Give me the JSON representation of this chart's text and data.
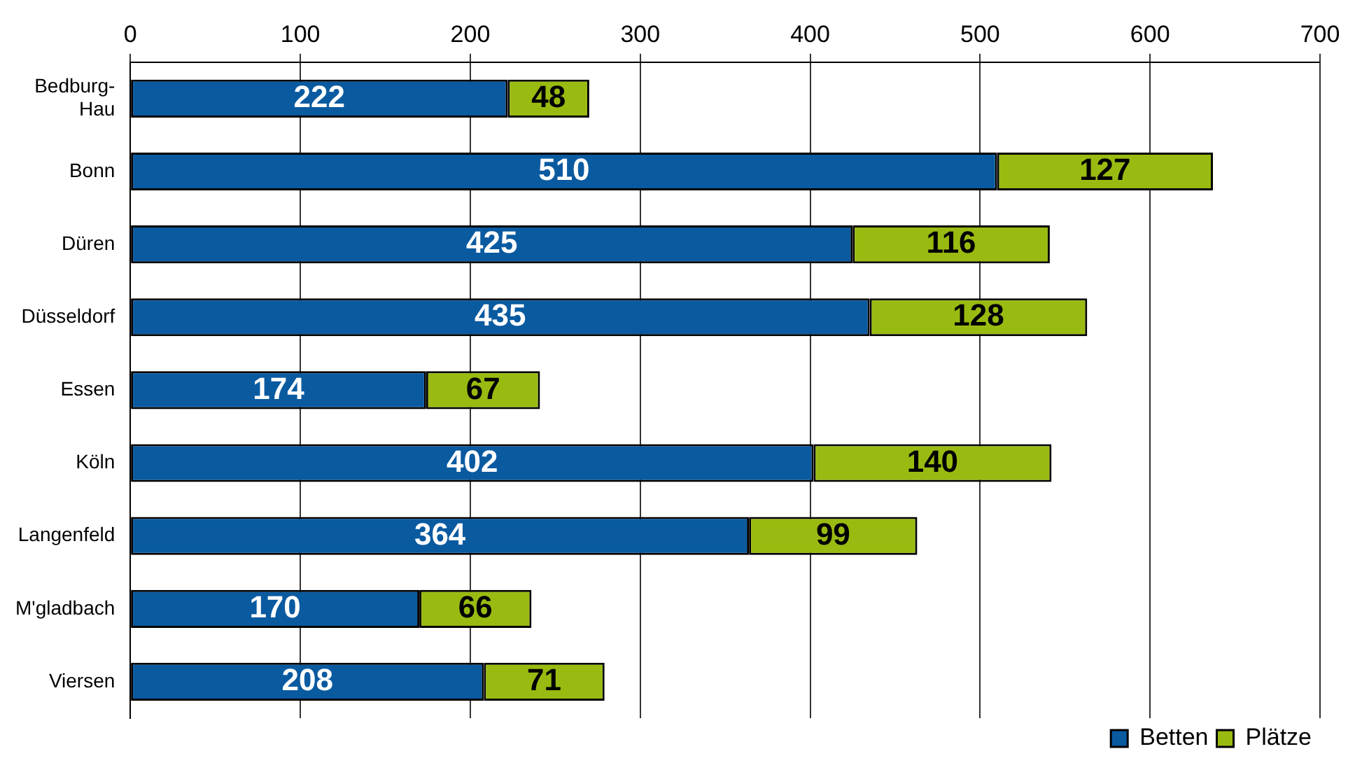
{
  "chart_data": {
    "type": "bar",
    "orientation": "horizontal",
    "stacked": true,
    "categories": [
      "Bedburg-Hau",
      "Bonn",
      "Düren",
      "Düsseldorf",
      "Essen",
      "Köln",
      "Langenfeld",
      "M'gladbach",
      "Viersen"
    ],
    "series": [
      {
        "name": "Betten",
        "color": "#0a5aa0",
        "values": [
          222,
          510,
          425,
          435,
          174,
          402,
          364,
          170,
          208
        ]
      },
      {
        "name": "Plätze",
        "color": "#99bb11",
        "values": [
          48,
          127,
          116,
          128,
          67,
          140,
          99,
          66,
          71
        ]
      }
    ],
    "xlim": [
      0,
      700
    ],
    "xticks": [
      0,
      100,
      200,
      300,
      400,
      500,
      600,
      700
    ],
    "grid": "x",
    "legend": "bottom",
    "data_labels": true
  }
}
